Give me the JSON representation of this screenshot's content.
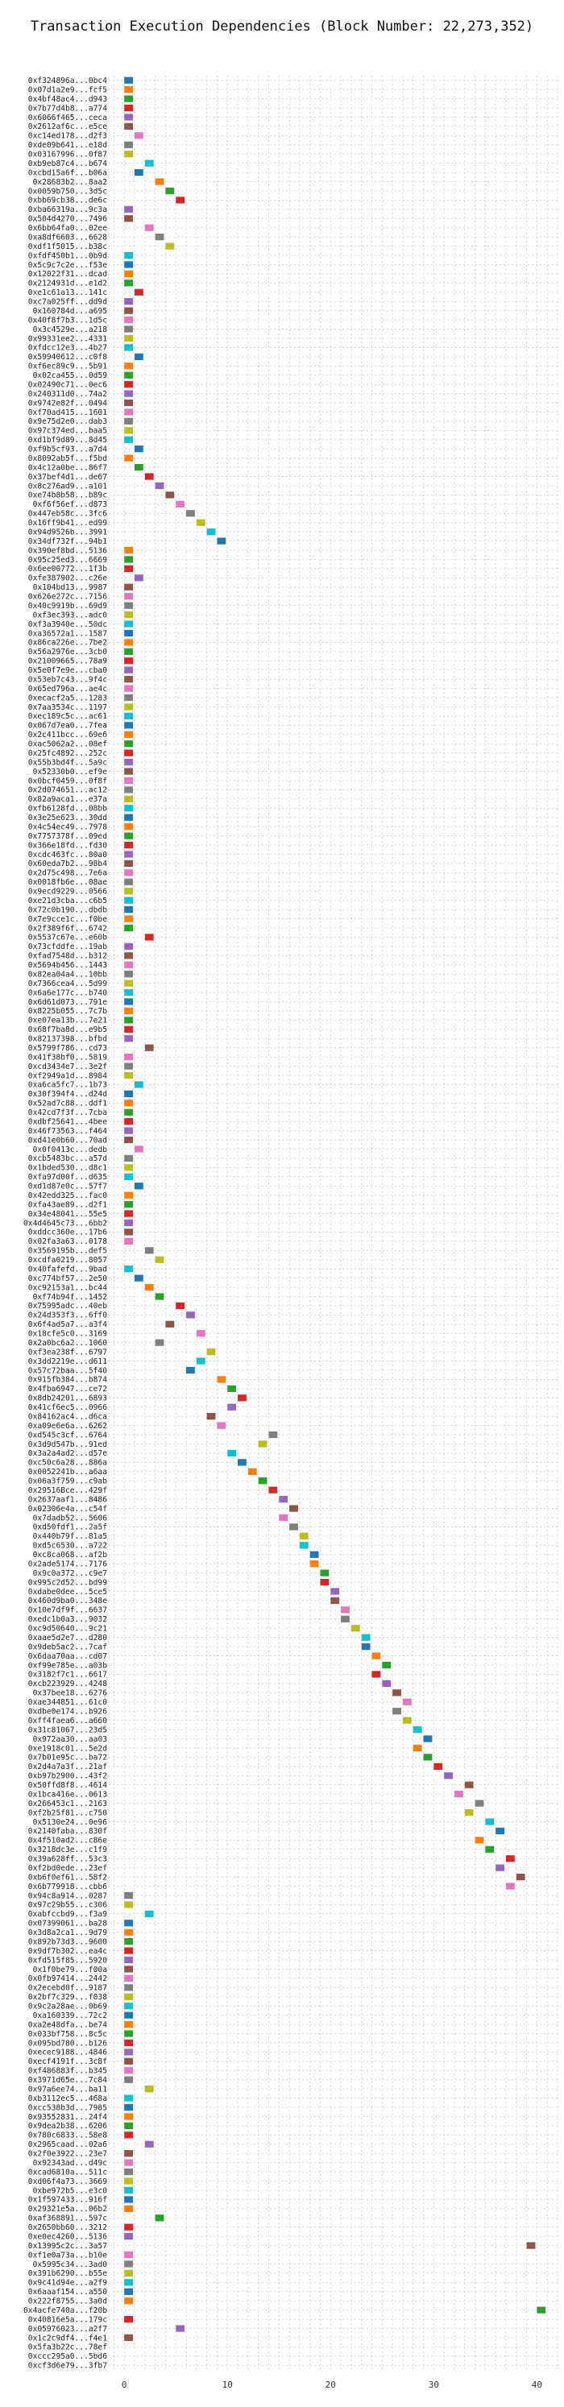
{
  "chart_data": {
    "type": "bar",
    "orientation": "horizontal",
    "title": "Transaction Execution Dependencies (Block Number: 22,273,352)",
    "xlabel": "",
    "ylabel": "",
    "xlim": [
      -1.5,
      42
    ],
    "xticks": [
      0,
      10,
      20,
      30,
      40
    ],
    "grid": true,
    "bar_width": 1,
    "palette": [
      "#1f77b4",
      "#ff7f0e",
      "#2ca02c",
      "#d62728",
      "#9467bd",
      "#8c564b",
      "#e377c2",
      "#7f7f7f",
      "#bcbd22",
      "#17becf"
    ],
    "transactions": [
      "0xf324896a...0bc4",
      "0x07d1a2e9...fcf5",
      "0x4bf48ac4...d943",
      "0x7b77d4b8...a774",
      "0x6066f465...ceca",
      "0x2612af6c...e5ce",
      "0xc14ed178...d2f3",
      "0xde09b641...e18d",
      "0x03167996...0f87",
      "0xb9eb87c4...b674",
      "0xcbd15a6f...b06a",
      "0x28683b2...8aa2",
      "0x0059b750...3d5c",
      "0xbb69cb38...de6c",
      "0xba66319a...9c3a",
      "0x504d4270...7496",
      "0x6bb64fa0...02ee",
      "0xa8df6603...6628",
      "0xdf1f5015...b38c",
      "0xfdf450b1...0b9d",
      "0x5c9c7c2e...f53e",
      "0x12022f31...dcad",
      "0x2124931d...e1d2",
      "0xe1c61a13...141c",
      "0xc7a025ff...dd9d",
      "0x160784d...a695",
      "0x40f8f7b3...1d5c",
      "0x3c4529e...a218",
      "0x99331ee2...4331",
      "0xfdcc12e3...4b27",
      "0x59940612...c0f8",
      "0xf6ec89c9...5b91",
      "0x02ca455...0d59",
      "0x02490c71...0ec6",
      "0x240311d0...74a2",
      "0x9742e82f...0494",
      "0xf70ad415...1601",
      "0x9e75d2e0...dab3",
      "0x97c374ed...baa5",
      "0xd1bf9d89...8d45",
      "0xf9b5cf93...a7d4",
      "0x8092ab5f...f5bd",
      "0x4c12a0be...86f7",
      "0x37bef4d1...de67",
      "0x8c276ad9...a101",
      "0xe74b8b58...b89c",
      "0xf6f56ef...d873",
      "0x447eb58c...3fc6",
      "0x16ff9b41...ed99",
      "0x94d9526b...3991",
      "0x34df732f...94b1",
      "0x390ef8bd...5136",
      "0x95c25ed3...6669",
      "0x6ee00772...1f3b",
      "0xfe387902...c26e",
      "0x104bd13...9987",
      "0x626e272c...7156",
      "0x40c9919b...69d9",
      "0xf3ec393...adc0",
      "0xf3a3940e...50dc",
      "0xa36572a1...1587",
      "0x86ca226e...7be2",
      "0x56a2976e...3cb0",
      "0x21009665...78a9",
      "0x5e0f7e9e...cba0",
      "0x53eb7c43...9f4c",
      "0x65ed796a...ae4c",
      "0xecacf2a5...1283",
      "0x7aa3534c...1197",
      "0xec189c5c...ac61",
      "0x067d7ea0...7fea",
      "0x2c411bcc...69e6",
      "0xac5062a2...08ef",
      "0x25fc4892...252c",
      "0x55b3bd4f...5a9c",
      "0x52330b0...ef9e",
      "0x0bcf0459...0f8f",
      "0x2d074651...ac12",
      "0x82a9aca1...e37a",
      "0xfb6128fd...08bb",
      "0x3e25e623...30dd",
      "0x4c54ec49...7978",
      "0x7757378f...09ed",
      "0x366e18fd...fd30",
      "0xcdc463fc...80a0",
      "0x60eda7b2...98b4",
      "0x2d75c498...7e6a",
      "0x0018fb6e...08ae",
      "0x9ecd9229...0566",
      "0xe21d3cba...c6b5",
      "0x72c0b190...dbdb",
      "0x7e9cce1c...f0be",
      "0x2f389f6f...6742",
      "0x5537c67e...e60b",
      "0x73cfddfe...19ab",
      "0xfad7548d...b312",
      "0x5694b456...1443",
      "0x82ea04a4...10bb",
      "0x7366cea4...5d99",
      "0x6a6e177c...b740",
      "0x6d61d073...791e",
      "0x8225b055...7c7b",
      "0xe07ea13b...7e21",
      "0x68f7ba8d...e9b5",
      "0x82137398...bfbd",
      "0x5799f786...cd73",
      "0x41f38bf0...5819",
      "0xcd3434e7...3e2f",
      "0xf2949a1d...8984",
      "0xa6ca5fc7...1b73",
      "0x30f394f4...d24d",
      "0x52ad7c88...ddf1",
      "0x42cd7f3f...7cba",
      "0xdbf25641...4bee",
      "0x46f73563...f464",
      "0xd41e0b60...70ad",
      "0x0f0413c...dedb",
      "0xcb5483bc...a57d",
      "0x1bded530...d8c1",
      "0xfa97d00f...d635",
      "0xd1d87e0c...57f7",
      "0x42edd325...fac0",
      "0xfa43ae89...d2f1",
      "0x34e48041...55e5",
      "0x4d4645c73...6bb2",
      "0xddcc360e...17b6",
      "0x02fa3a63...0178",
      "0x3569195b...def5",
      "0xcdfa0219...8057",
      "0x40fafefd...9bad",
      "0xc774bf57...2e50",
      "0xc92153a1...bc44",
      "0xf74b94f...1452",
      "0x75995adc...40eb",
      "0x24d353f3...6ff0",
      "0x6f4ad5a7...a3f4",
      "0x18cfe5c0...3169",
      "0x2a0bc6a2...1060",
      "0xf3ea238f...6797",
      "0x3dd2219e...d611",
      "0x57c72baa...5f40",
      "0x915fb384...b874",
      "0x4fba6947...ce72",
      "0x8db24201...6893",
      "0x41cf6ec5...0966",
      "0x84162ac4...d6ca",
      "0xa09e6e6a...6262",
      "0xd545c3cf...6764",
      "0x3d9d547b...91ed",
      "0x3a2a4ad2...d57e",
      "0xc50c6a28...886a",
      "0x0052241b...a6aa",
      "0x06a3f759...c9ab",
      "0x29516Bce...429f",
      "0x2637aaf1...8486",
      "0x02306e4a...c54f",
      "0x7dadb52...5606",
      "0xd50fdf1...2a5f",
      "0x440b79f...81a5",
      "0xd5c6530...a722",
      "0xc8ca068...af2b",
      "0x2ade5174...7176",
      "0x9c0a372...c9e7",
      "0x995c2d52...bd99",
      "0xdabe0dee...5ce5",
      "0x460d9ba0...348e",
      "0x10e7df9f...6637",
      "0xedc1b0a3...9032",
      "0xc9d50640...9c21",
      "0xaae5d2e7...d280",
      "0x9deb5ac2...7caf",
      "0x6daa70aa...cd07",
      "0xf99e785e...a03b",
      "0x3182f7c1...6617",
      "0xcb223929...4248",
      "0x37bee18...6276",
      "0xae344851...61c0",
      "0xdbe0e174...b926",
      "0xff4faea6...a660",
      "0x31c81067...23d5",
      "0x972aa30...aa03",
      "0xe1918c01...5e2d",
      "0x7b01e95c...ba72",
      "0x2d4a7a3f...21af",
      "0xb97b2900...43f2",
      "0x50ffd8f8...4614",
      "0x1bca416e...0613",
      "0x266453c1...2163",
      "0xf2b25f81...c750",
      "0x5130e24...0e96",
      "0x2140faba...830f",
      "0x4f510ad2...c86e",
      "0x3218dc3e...c1f9",
      "0x39a628ff...53c3",
      "0xf2bd0ede...23ef",
      "0xb6f0ef61...58f2",
      "0x6b779918...cbb6",
      "0x94c8a914...0287",
      "0x97c29b55...c306",
      "0xabfccbd9...f3a9",
      "0x07399061...ba28",
      "0x3d8a2ca1...9d79",
      "0x892b73d3...9600",
      "0x9df7b302...ea4c",
      "0xfd515f85...5920",
      "0x1f0be79...f00a",
      "0x0fb97414...2442",
      "0x2ecebd0f...9187",
      "0x2bf7c329...f038",
      "0x9c2a28ae...0b69",
      "0xa160339...72c2",
      "0xa2e48dfa...be74",
      "0x033bf758...8c5c",
      "0x095bd780...b126",
      "0xecec9188...4846",
      "0xecf4191f...3c8f",
      "0xf486883f...b345",
      "0x3971d65e...7c84",
      "0x97a6ee74...ba11",
      "0xb3112ec5...468a",
      "0xcc538b3d...7985",
      "0x93552831...24f4",
      "0x9dea2b38...6206",
      "0x780c6833...58e8",
      "0x2965caad...02a6",
      "0x2f0e3922...23e7",
      "0x92343ad...d49c",
      "0xcad6810a...511c",
      "0xd06f4a73...3669",
      "0xbe972b5...e3c0",
      "0x1f597433...916f",
      "0x29321e5a...06b2",
      "0xaf368891...597c",
      "0x2650bb60...3212",
      "0xe0ec4260...5136",
      "0x13995c2c...3a57",
      "0xf1e0a73a...b10e",
      "0x5995c34...3ad0",
      "0x391b6290...b55e",
      "0x9c41d94e...a2f9",
      "0x6aaaf154...a550",
      "0x222f8755...3a0d",
      "0x4acfe740a...f20b",
      "0x40816e5a...179c",
      "0x05976023...a2f7",
      "0x1c2c9df4...f4e1",
      "0x5fa3b22c...78ef",
      "0xccc295a0...5bd6",
      "0xcf3d6e79...3fb7"
    ],
    "start": [
      0,
      0,
      0,
      0,
      0,
      0,
      1,
      0,
      0,
      2,
      1,
      3,
      4,
      5,
      0,
      0,
      2,
      3,
      4,
      0,
      0,
      0,
      0,
      1,
      0,
      0,
      0,
      0,
      0,
      0,
      1,
      0,
      0,
      0,
      0,
      0,
      0,
      0,
      0,
      0,
      1,
      0,
      1,
      2,
      3,
      4,
      5,
      6,
      7,
      8,
      9,
      0,
      0,
      0,
      1,
      0,
      0,
      0,
      0,
      0,
      0,
      0,
      0,
      0,
      0,
      0,
      0,
      0,
      0,
      0,
      0,
      0,
      0,
      0,
      0,
      0,
      0,
      0,
      0,
      0,
      0,
      0,
      0,
      0,
      0,
      0,
      0,
      0,
      0,
      0,
      0,
      0,
      0,
      2,
      0,
      0,
      0,
      0,
      0,
      0,
      0,
      0,
      0,
      0,
      0,
      2,
      0,
      0,
      0,
      1,
      0,
      0,
      0,
      0,
      0,
      0,
      1,
      0,
      0,
      0,
      1,
      0,
      0,
      0,
      0,
      0,
      0,
      2,
      3,
      0,
      1,
      2,
      3,
      5,
      6,
      4,
      7,
      3,
      8,
      7,
      6,
      9,
      10,
      11,
      10,
      8,
      9,
      14,
      13,
      10,
      11,
      12,
      13,
      14,
      15,
      16,
      15,
      16,
      17,
      17,
      18,
      18,
      19,
      19,
      20,
      20,
      21,
      21,
      22,
      23,
      23,
      24,
      25,
      24,
      25,
      26,
      27,
      26,
      27,
      28,
      29,
      28,
      29,
      30,
      31,
      33,
      32,
      34,
      33,
      35,
      36,
      34,
      35,
      37,
      36,
      38,
      37,
      0,
      0,
      2,
      0,
      0,
      0,
      0,
      0,
      0,
      0,
      0,
      0,
      0,
      0,
      0,
      0,
      0,
      0,
      0,
      0,
      0,
      2,
      0,
      0,
      0,
      0,
      0,
      2,
      0,
      0,
      0,
      0,
      0,
      0,
      0,
      3,
      0,
      0,
      39,
      0,
      0,
      0,
      0,
      0,
      0,
      40,
      0,
      5,
      0
    ],
    "duration": [
      1,
      1,
      1,
      1,
      1,
      1,
      1,
      1,
      1,
      1,
      1,
      1,
      1,
      1,
      1,
      1,
      1,
      1,
      1,
      1,
      1,
      1,
      1,
      1,
      1,
      1,
      1,
      1,
      1,
      1,
      1,
      1,
      1,
      1,
      1,
      1,
      1,
      1,
      1,
      1,
      1,
      1,
      1,
      1,
      1,
      1,
      1,
      1,
      1,
      1,
      1,
      1,
      1,
      1,
      1,
      1,
      1,
      1,
      1,
      1,
      1,
      1,
      1,
      1,
      1,
      1,
      1,
      1,
      1,
      1,
      1,
      1,
      1,
      1,
      1,
      1,
      1,
      1,
      1,
      1,
      1,
      1,
      1,
      1,
      1,
      1,
      1,
      1,
      1,
      1,
      1,
      1,
      1,
      1,
      1,
      1,
      1,
      1,
      1,
      1,
      1,
      1,
      1,
      1,
      1,
      1,
      1,
      1,
      1,
      1,
      1,
      1,
      1,
      1,
      1,
      1,
      1,
      1,
      1,
      1,
      1,
      1,
      1,
      1,
      1,
      1,
      1,
      1,
      1,
      1,
      1,
      1,
      1,
      1,
      1,
      1,
      1,
      1,
      1,
      1,
      1,
      1,
      1,
      1,
      1,
      1,
      1,
      1,
      1,
      1,
      1,
      1,
      1,
      1,
      1,
      1,
      1,
      1,
      1,
      1,
      1,
      1,
      1,
      1,
      1,
      1,
      1,
      1,
      1,
      1,
      1,
      1,
      1,
      1,
      1,
      1,
      1,
      1,
      1,
      1,
      1,
      1,
      1,
      1,
      1,
      1,
      1,
      1,
      1,
      1,
      1,
      1,
      1,
      1,
      1,
      1,
      1,
      1,
      1,
      1,
      1,
      1,
      1,
      1,
      1,
      1,
      1,
      1,
      1,
      1,
      1,
      1,
      1,
      1,
      1,
      1,
      1,
      1,
      1,
      1,
      1,
      1,
      1,
      1,
      1,
      1,
      1,
      1,
      1,
      1,
      1,
      1,
      1,
      1,
      1,
      1,
      1,
      1,
      1,
      1,
      1,
      1,
      1,
      1,
      1,
      1,
      1,
      1,
      1,
      1
    ]
  }
}
